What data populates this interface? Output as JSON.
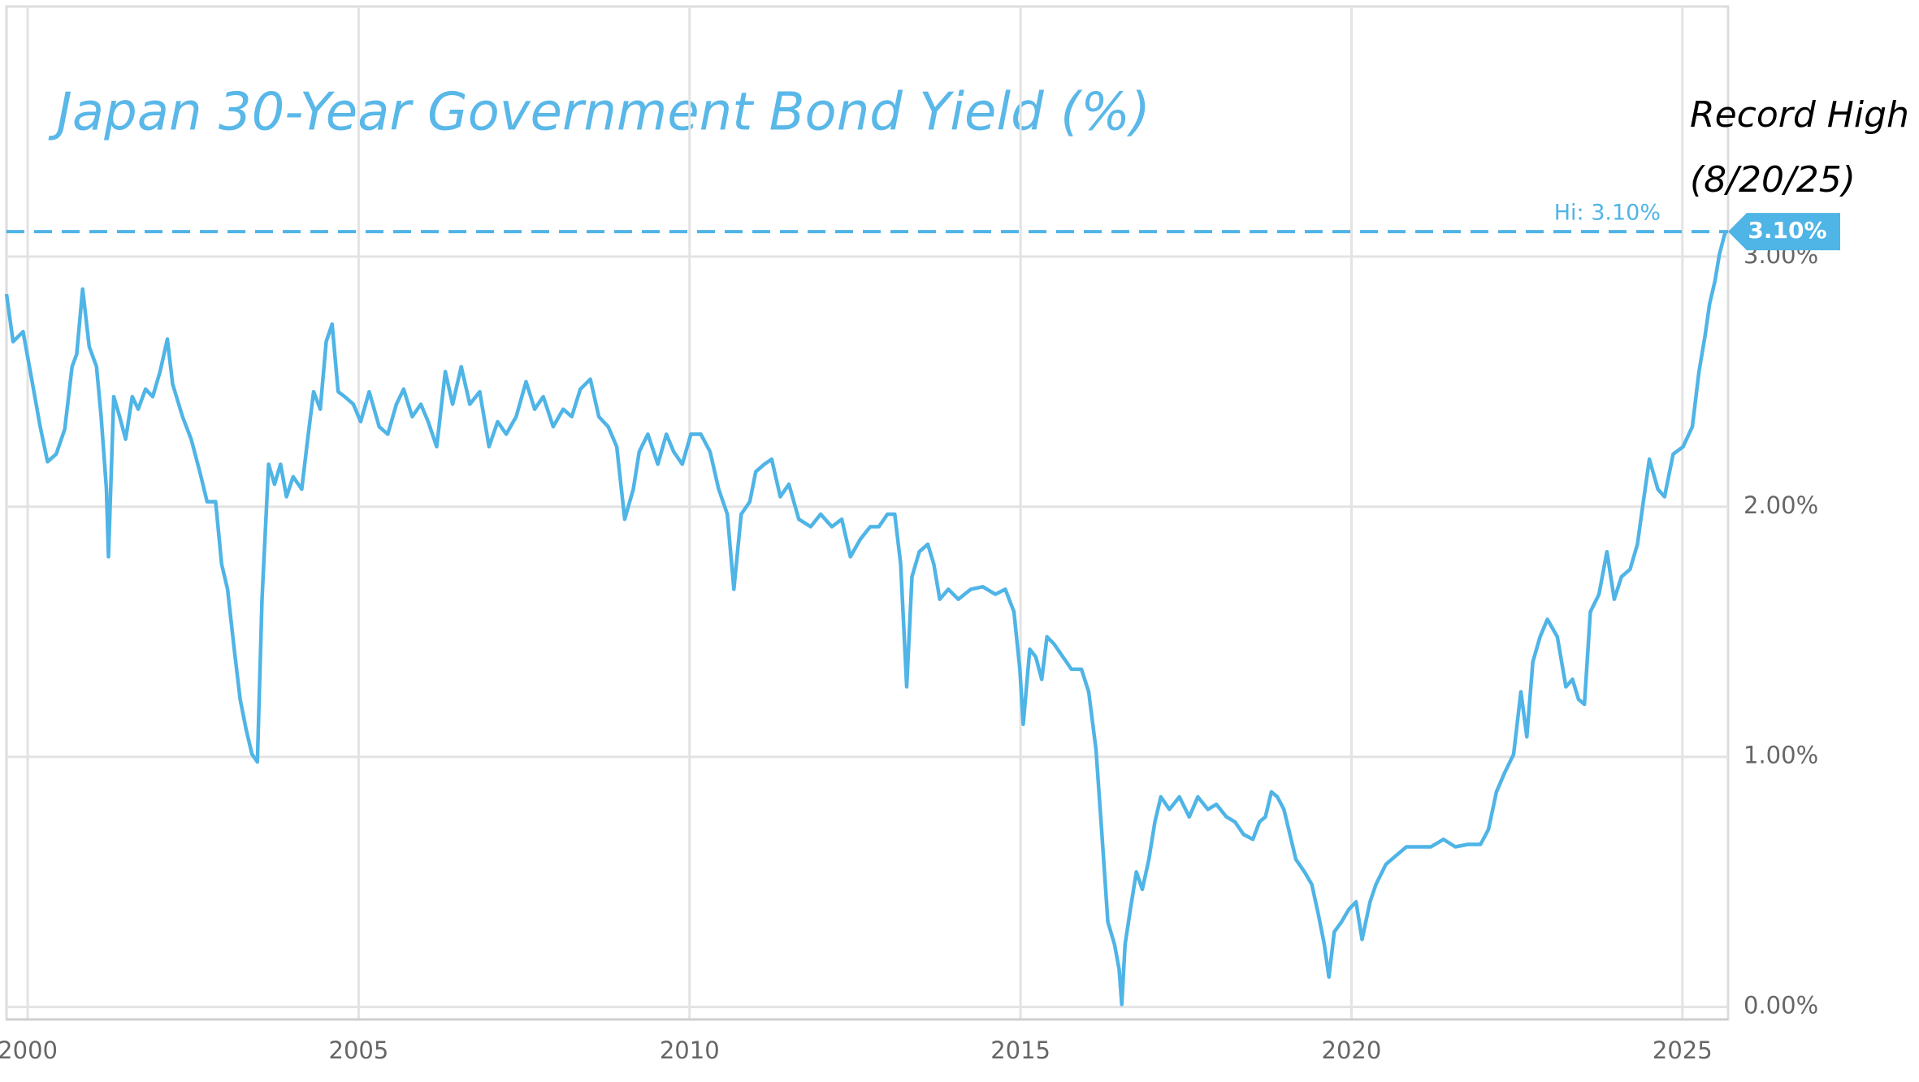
{
  "chart_data": {
    "type": "line",
    "title": "Japan 30-Year Government Bond Yield (%)",
    "annotation": [
      "Record High",
      "(8/20/25)"
    ],
    "color": "#4fb4e6",
    "grid": true,
    "xlim": [
      1999.68,
      2025.69
    ],
    "xticks": [
      2000,
      2005,
      2010,
      2015,
      2020,
      2025
    ],
    "ylim": [
      -0.05,
      4.0
    ],
    "yticks": [
      {
        "value": 0,
        "label": "0.00%"
      },
      {
        "value": 1,
        "label": "1.00%"
      },
      {
        "value": 2,
        "label": "2.00%"
      },
      {
        "value": 3,
        "label": "3.00%"
      }
    ],
    "hi_line": {
      "value": 3.1,
      "label": "Hi: 3.10%"
    },
    "last_value": {
      "value": 3.1,
      "label": "3.10%"
    },
    "x": [
      1999.68,
      1999.78,
      1999.93,
      2000.06,
      2000.19,
      2000.3,
      2000.43,
      2000.56,
      2000.67,
      2000.74,
      2000.83,
      2000.93,
      2001.04,
      2001.11,
      2001.19,
      2001.22,
      2001.3,
      2001.39,
      2001.48,
      2001.58,
      2001.67,
      2001.78,
      2001.89,
      2002.0,
      2002.11,
      2002.19,
      2002.34,
      2002.47,
      2002.6,
      2002.71,
      2002.84,
      2002.93,
      2003.02,
      2003.12,
      2003.21,
      2003.3,
      2003.39,
      2003.47,
      2003.54,
      2003.64,
      2003.73,
      2003.82,
      2003.91,
      2004.01,
      2004.14,
      2004.23,
      2004.32,
      2004.42,
      2004.51,
      2004.6,
      2004.69,
      2004.79,
      2004.92,
      2005.03,
      2005.16,
      2005.31,
      2005.44,
      2005.57,
      2005.68,
      2005.81,
      2005.94,
      2006.05,
      2006.18,
      2006.31,
      2006.42,
      2006.55,
      2006.68,
      2006.83,
      2006.97,
      2007.1,
      2007.23,
      2007.38,
      2007.53,
      2007.66,
      2007.79,
      2007.94,
      2008.09,
      2008.22,
      2008.35,
      2008.5,
      2008.63,
      2008.77,
      2008.9,
      2009.02,
      2009.15,
      2009.24,
      2009.37,
      2009.52,
      2009.65,
      2009.76,
      2009.89,
      2010.02,
      2010.17,
      2010.31,
      2010.44,
      2010.57,
      2010.67,
      2010.78,
      2010.91,
      2011.0,
      2011.13,
      2011.24,
      2011.37,
      2011.5,
      2011.65,
      2011.83,
      2011.98,
      2012.15,
      2012.3,
      2012.43,
      2012.58,
      2012.73,
      2012.86,
      2012.99,
      2013.1,
      2013.19,
      2013.28,
      2013.36,
      2013.47,
      2013.6,
      2013.69,
      2013.78,
      2013.91,
      2014.06,
      2014.25,
      2014.43,
      2014.62,
      2014.77,
      2014.9,
      2014.99,
      2015.04,
      2015.14,
      2015.23,
      2015.32,
      2015.4,
      2015.51,
      2015.64,
      2015.77,
      2015.92,
      2016.03,
      2016.14,
      2016.23,
      2016.32,
      2016.42,
      2016.49,
      2016.53,
      2016.58,
      2016.66,
      2016.75,
      2016.84,
      2016.94,
      2017.03,
      2017.12,
      2017.25,
      2017.4,
      2017.55,
      2017.68,
      2017.83,
      2017.96,
      2018.11,
      2018.24,
      2018.37,
      2018.51,
      2018.61,
      2018.7,
      2018.79,
      2018.88,
      2018.98,
      2019.07,
      2019.16,
      2019.29,
      2019.4,
      2019.5,
      2019.59,
      2019.66,
      2019.74,
      2019.85,
      2019.96,
      2020.07,
      2020.16,
      2020.28,
      2020.37,
      2020.52,
      2020.65,
      2020.83,
      2021.02,
      2021.2,
      2021.39,
      2021.57,
      2021.76,
      2021.95,
      2022.07,
      2022.19,
      2022.32,
      2022.45,
      2022.56,
      2022.65,
      2022.74,
      2022.85,
      2022.96,
      2023.11,
      2023.24,
      2023.34,
      2023.43,
      2023.52,
      2023.61,
      2023.74,
      2023.86,
      2023.97,
      2024.08,
      2024.21,
      2024.32,
      2024.41,
      2024.5,
      2024.63,
      2024.73,
      2024.86,
      2025.01,
      2025.15,
      2025.25,
      2025.34,
      2025.41,
      2025.49,
      2025.56,
      2025.65
    ],
    "values": [
      2.85,
      2.66,
      2.7,
      2.51,
      2.32,
      2.18,
      2.21,
      2.31,
      2.56,
      2.61,
      2.87,
      2.64,
      2.56,
      2.36,
      2.07,
      1.8,
      2.44,
      2.36,
      2.27,
      2.44,
      2.39,
      2.47,
      2.44,
      2.54,
      2.67,
      2.49,
      2.36,
      2.27,
      2.14,
      2.02,
      2.02,
      1.77,
      1.67,
      1.43,
      1.23,
      1.11,
      1.01,
      0.98,
      1.63,
      2.17,
      2.09,
      2.17,
      2.04,
      2.12,
      2.07,
      2.27,
      2.46,
      2.39,
      2.66,
      2.73,
      2.46,
      2.44,
      2.41,
      2.34,
      2.46,
      2.32,
      2.29,
      2.41,
      2.47,
      2.36,
      2.41,
      2.34,
      2.24,
      2.54,
      2.41,
      2.56,
      2.41,
      2.46,
      2.24,
      2.34,
      2.29,
      2.36,
      2.5,
      2.39,
      2.44,
      2.32,
      2.39,
      2.36,
      2.47,
      2.51,
      2.36,
      2.32,
      2.24,
      1.95,
      2.07,
      2.22,
      2.29,
      2.17,
      2.29,
      2.22,
      2.17,
      2.29,
      2.29,
      2.22,
      2.07,
      1.97,
      1.67,
      1.97,
      2.02,
      2.14,
      2.17,
      2.19,
      2.04,
      2.09,
      1.95,
      1.92,
      1.97,
      1.92,
      1.95,
      1.8,
      1.87,
      1.92,
      1.92,
      1.97,
      1.97,
      1.77,
      1.28,
      1.72,
      1.82,
      1.85,
      1.77,
      1.63,
      1.67,
      1.63,
      1.67,
      1.68,
      1.65,
      1.67,
      1.58,
      1.35,
      1.13,
      1.43,
      1.4,
      1.31,
      1.48,
      1.45,
      1.4,
      1.35,
      1.35,
      1.26,
      1.03,
      0.69,
      0.34,
      0.25,
      0.15,
      0.01,
      0.25,
      0.39,
      0.54,
      0.47,
      0.59,
      0.74,
      0.84,
      0.79,
      0.84,
      0.76,
      0.84,
      0.79,
      0.81,
      0.76,
      0.74,
      0.69,
      0.67,
      0.74,
      0.76,
      0.86,
      0.84,
      0.79,
      0.69,
      0.59,
      0.54,
      0.49,
      0.37,
      0.25,
      0.12,
      0.3,
      0.34,
      0.39,
      0.42,
      0.27,
      0.42,
      0.49,
      0.57,
      0.6,
      0.64,
      0.64,
      0.64,
      0.67,
      0.64,
      0.65,
      0.65,
      0.71,
      0.86,
      0.94,
      1.01,
      1.26,
      1.08,
      1.38,
      1.48,
      1.55,
      1.48,
      1.28,
      1.31,
      1.23,
      1.21,
      1.58,
      1.65,
      1.82,
      1.63,
      1.72,
      1.75,
      1.85,
      2.02,
      2.19,
      2.07,
      2.04,
      2.21,
      2.24,
      2.32,
      2.54,
      2.68,
      2.81,
      2.9,
      3.01,
      3.1
    ]
  }
}
